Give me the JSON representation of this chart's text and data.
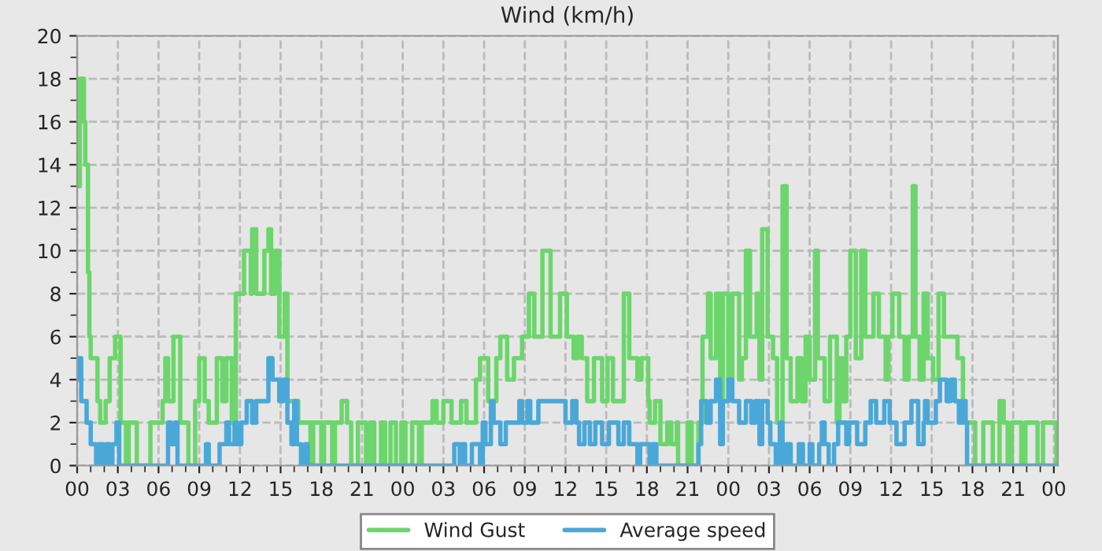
{
  "chart_data": {
    "type": "step",
    "title": "Wind (km/h)",
    "xlim": [
      0,
      72.3
    ],
    "ylim": [
      0,
      20
    ],
    "xticks": [
      {
        "value": 0,
        "label": "00"
      },
      {
        "value": 1,
        "label": null
      },
      {
        "value": 2,
        "label": null
      },
      {
        "value": 3,
        "label": "03"
      },
      {
        "value": 4,
        "label": null
      },
      {
        "value": 5,
        "label": null
      },
      {
        "value": 6,
        "label": "06"
      },
      {
        "value": 7,
        "label": null
      },
      {
        "value": 8,
        "label": null
      },
      {
        "value": 9,
        "label": "09"
      },
      {
        "value": 10,
        "label": null
      },
      {
        "value": 11,
        "label": null
      },
      {
        "value": 12,
        "label": "12"
      },
      {
        "value": 13,
        "label": null
      },
      {
        "value": 14,
        "label": null
      },
      {
        "value": 15,
        "label": "15"
      },
      {
        "value": 16,
        "label": null
      },
      {
        "value": 17,
        "label": null
      },
      {
        "value": 18,
        "label": "18"
      },
      {
        "value": 19,
        "label": null
      },
      {
        "value": 20,
        "label": null
      },
      {
        "value": 21,
        "label": "21"
      },
      {
        "value": 22,
        "label": null
      },
      {
        "value": 23,
        "label": null
      },
      {
        "value": 24,
        "label": "00"
      },
      {
        "value": 25,
        "label": null
      },
      {
        "value": 26,
        "label": null
      },
      {
        "value": 27,
        "label": "03"
      },
      {
        "value": 28,
        "label": null
      },
      {
        "value": 29,
        "label": null
      },
      {
        "value": 30,
        "label": "06"
      },
      {
        "value": 31,
        "label": null
      },
      {
        "value": 32,
        "label": null
      },
      {
        "value": 33,
        "label": "09"
      },
      {
        "value": 34,
        "label": null
      },
      {
        "value": 35,
        "label": null
      },
      {
        "value": 36,
        "label": "12"
      },
      {
        "value": 37,
        "label": null
      },
      {
        "value": 38,
        "label": null
      },
      {
        "value": 39,
        "label": "15"
      },
      {
        "value": 40,
        "label": null
      },
      {
        "value": 41,
        "label": null
      },
      {
        "value": 42,
        "label": "18"
      },
      {
        "value": 43,
        "label": null
      },
      {
        "value": 44,
        "label": null
      },
      {
        "value": 45,
        "label": "21"
      },
      {
        "value": 46,
        "label": null
      },
      {
        "value": 47,
        "label": null
      },
      {
        "value": 48,
        "label": "00"
      },
      {
        "value": 49,
        "label": null
      },
      {
        "value": 50,
        "label": null
      },
      {
        "value": 51,
        "label": "03"
      },
      {
        "value": 52,
        "label": null
      },
      {
        "value": 53,
        "label": null
      },
      {
        "value": 54,
        "label": "06"
      },
      {
        "value": 55,
        "label": null
      },
      {
        "value": 56,
        "label": null
      },
      {
        "value": 57,
        "label": "09"
      },
      {
        "value": 58,
        "label": null
      },
      {
        "value": 59,
        "label": null
      },
      {
        "value": 60,
        "label": "12"
      },
      {
        "value": 61,
        "label": null
      },
      {
        "value": 62,
        "label": null
      },
      {
        "value": 63,
        "label": "15"
      },
      {
        "value": 64,
        "label": null
      },
      {
        "value": 65,
        "label": null
      },
      {
        "value": 66,
        "label": "18"
      },
      {
        "value": 67,
        "label": null
      },
      {
        "value": 68,
        "label": null
      },
      {
        "value": 69,
        "label": "21"
      },
      {
        "value": 70,
        "label": null
      },
      {
        "value": 71,
        "label": null
      },
      {
        "value": 72,
        "label": "00"
      }
    ],
    "yticks": [
      0,
      {
        "value": 1,
        "label": null
      },
      2,
      {
        "value": 3,
        "label": null
      },
      4,
      {
        "value": 5,
        "label": null
      },
      6,
      {
        "value": 7,
        "label": null
      },
      8,
      {
        "value": 9,
        "label": null
      },
      10,
      {
        "value": 11,
        "label": null
      },
      12,
      {
        "value": 13,
        "label": null
      },
      14,
      {
        "value": 15,
        "label": null
      },
      16,
      {
        "value": 17,
        "label": null
      },
      18,
      {
        "value": 19,
        "label": null
      },
      20
    ],
    "grid": true,
    "legend": "bottom",
    "line_style": "solid",
    "series": [
      {
        "name": "Wind Gust",
        "color": "#6cd66c",
        "x": [
          0,
          0.2,
          0.5,
          0.6,
          0.8,
          0.9,
          1.0,
          1.5,
          1.7,
          2.1,
          2.4,
          2.8,
          3.2,
          3.6,
          3.8,
          4.4,
          5.4,
          6.3,
          6.5,
          6.7,
          7.1,
          7.6,
          8.2,
          8.7,
          9.0,
          9.4,
          9.7,
          10.3,
          10.7,
          11.0,
          11.4,
          11.7,
          12.3,
          12.8,
          12.9,
          13.2,
          13.8,
          14.1,
          14.3,
          14.6,
          14.9,
          15.3,
          15.5,
          16.3,
          17.2,
          17.4,
          18.0,
          18.2,
          18.8,
          19.0,
          19.5,
          19.9,
          20.2,
          20.7,
          21.3,
          21.6,
          21.9,
          22.4,
          22.7,
          23.1,
          23.5,
          23.9,
          24.2,
          24.7,
          25.2,
          25.4,
          26.2,
          26.5,
          27.0,
          27.6,
          28.3,
          28.7,
          29.4,
          29.7,
          30.3,
          30.9,
          31.2,
          31.7,
          32.2,
          32.8,
          33.3,
          33.7,
          34.3,
          34.9,
          35.6,
          36.1,
          36.6,
          36.9,
          37.2,
          37.6,
          38.1,
          38.7,
          39.1,
          39.5,
          40.3,
          40.7,
          41.3,
          41.6,
          42.1,
          42.2,
          42.6,
          43.0,
          43.5,
          43.8,
          44.2,
          44.3,
          45.0,
          45.3,
          45.8,
          46.1,
          46.5,
          46.7,
          47.1,
          47.4,
          47.6,
          48.0,
          48.3,
          48.8,
          49.0,
          49.3,
          49.6,
          50.1,
          50.3,
          50.5,
          50.9,
          51.3,
          51.6,
          52.0,
          52.3,
          52.6,
          53.1,
          53.4,
          53.7,
          54.0,
          54.4,
          54.6,
          55.1,
          55.5,
          56.0,
          56.2,
          56.4,
          56.7,
          57.0,
          57.4,
          57.8,
          58.1,
          58.7,
          59.1,
          59.6,
          59.8,
          60.1,
          60.6,
          61.0,
          61.3,
          61.6,
          61.8,
          62.1,
          62.4,
          62.7,
          63.1,
          63.5,
          63.9,
          64.9,
          65.3,
          66.2,
          66.8,
          67.5,
          68.0,
          68.3,
          68.6,
          68.9,
          69.6,
          69.9,
          70.8,
          71.2,
          72.2
        ],
        "values": [
          13,
          18,
          16,
          14,
          9,
          6,
          5,
          3,
          2,
          3,
          5,
          6,
          2,
          0,
          2,
          0,
          2,
          3,
          5,
          3,
          6,
          2,
          0,
          3,
          5,
          3,
          2,
          5,
          3,
          5,
          2,
          8,
          10,
          8,
          11,
          8,
          10,
          11,
          8,
          10,
          6,
          8,
          3,
          2,
          0,
          2,
          0,
          2,
          0,
          2,
          3,
          2,
          0,
          2,
          0,
          2,
          0,
          2,
          0,
          2,
          0,
          2,
          0,
          2,
          0,
          2,
          3,
          2,
          3,
          2,
          3,
          2,
          4,
          5,
          3,
          5,
          6,
          4,
          5,
          6,
          8,
          6,
          10,
          6,
          8,
          6,
          5,
          6,
          5,
          3,
          5,
          3,
          5,
          3,
          8,
          5,
          4,
          5,
          3,
          2,
          3,
          1,
          2,
          1,
          2,
          0,
          2,
          0,
          2,
          6,
          8,
          5,
          8,
          3,
          8,
          4,
          8,
          4,
          5,
          10,
          6,
          8,
          4,
          11,
          6,
          5,
          2,
          13,
          5,
          3,
          5,
          3,
          6,
          4,
          10,
          5,
          3,
          6,
          2,
          5,
          3,
          6,
          10,
          5,
          10,
          6,
          8,
          6,
          4,
          6,
          8,
          6,
          4,
          6,
          13,
          6,
          4,
          8,
          5,
          4,
          8,
          6,
          5,
          2,
          0,
          2,
          0,
          3,
          2,
          0,
          2,
          0,
          2,
          0,
          2,
          0
        ]
      },
      {
        "name": "Average speed",
        "color": "#4aa8d8",
        "x": [
          0,
          0.1,
          0.3,
          0.7,
          1.0,
          1.4,
          1.6,
          1.9,
          2.1,
          2.4,
          2.6,
          2.9,
          3.1,
          6.7,
          6.9,
          7.2,
          7.4,
          9.5,
          9.7,
          10.5,
          11.0,
          11.2,
          11.6,
          11.8,
          12.1,
          12.5,
          12.9,
          13.2,
          14.1,
          14.4,
          14.9,
          15.2,
          15.5,
          15.8,
          16.0,
          16.2,
          16.5,
          16.8,
          17.0,
          27.8,
          28.2,
          28.4,
          28.6,
          29.1,
          29.7,
          29.9,
          30.1,
          30.5,
          30.7,
          31.2,
          31.6,
          32.6,
          32.8,
          33.2,
          33.4,
          34.0,
          36.0,
          36.5,
          36.8,
          37.0,
          37.4,
          37.8,
          38.2,
          38.7,
          39.2,
          39.9,
          40.3,
          40.7,
          41.3,
          41.5,
          42.2,
          42.4,
          42.7,
          45.8,
          46.0,
          46.4,
          46.7,
          47.1,
          47.4,
          47.6,
          48.0,
          48.3,
          48.8,
          49.3,
          49.7,
          50.0,
          50.3,
          50.5,
          50.9,
          51.1,
          51.5,
          51.8,
          52.0,
          52.3,
          52.6,
          53.2,
          53.5,
          54.0,
          54.2,
          54.7,
          54.9,
          55.1,
          55.4,
          55.8,
          56.1,
          56.7,
          56.9,
          57.5,
          58.1,
          58.5,
          58.9,
          59.5,
          59.9,
          60.4,
          61.0,
          61.5,
          62.0,
          62.4,
          62.5,
          62.7,
          63.3,
          63.6,
          64.1,
          64.4,
          64.7,
          65.0,
          65.2,
          65.5,
          65.6,
          72.2
        ],
        "values": [
          4,
          5,
          3,
          2,
          1,
          0,
          1,
          0,
          1,
          0,
          1,
          2,
          0,
          2,
          1,
          2,
          0,
          1,
          0,
          1,
          2,
          1,
          2,
          1,
          2,
          3,
          2,
          3,
          5,
          4,
          3,
          4,
          2,
          1,
          3,
          1,
          0,
          1,
          0,
          1,
          0,
          1,
          0,
          1,
          0,
          2,
          1,
          3,
          2,
          1,
          2,
          3,
          2,
          3,
          2,
          3,
          2,
          3,
          2,
          1,
          2,
          1,
          2,
          1,
          2,
          1,
          2,
          1,
          0,
          1,
          0,
          1,
          0,
          1,
          3,
          2,
          3,
          4,
          1,
          3,
          4,
          3,
          2,
          3,
          2,
          3,
          1,
          3,
          2,
          1,
          0,
          2,
          0,
          1,
          0,
          1,
          0,
          1,
          0,
          1,
          2,
          1,
          0,
          1,
          2,
          1,
          2,
          1,
          2,
          3,
          2,
          3,
          2,
          1,
          2,
          3,
          1,
          2,
          3,
          2,
          3,
          4,
          3,
          4,
          3,
          2,
          3,
          2,
          0,
          0
        ]
      }
    ]
  }
}
